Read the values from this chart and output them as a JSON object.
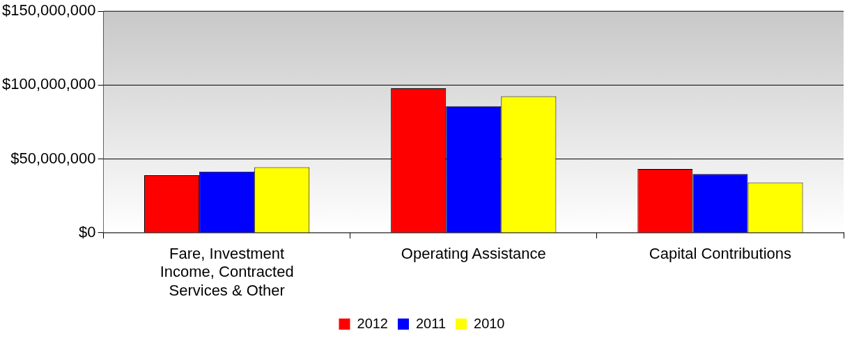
{
  "chart_data": {
    "type": "bar",
    "categories": [
      "Fare, Investment Income, Contracted Services & Other",
      "Operating Assistance",
      "Capital Contributions"
    ],
    "series": [
      {
        "name": "2012",
        "color": "#ff0000",
        "values": [
          39000000,
          97800000,
          43200000
        ]
      },
      {
        "name": "2011",
        "color": "#0000ff",
        "values": [
          41500000,
          85700000,
          39800000
        ]
      },
      {
        "name": "2010",
        "color": "#ffff00",
        "values": [
          44400000,
          92400000,
          34000000
        ]
      }
    ],
    "ylim": [
      0,
      150000000
    ],
    "yticks": [
      {
        "value": 0,
        "label": "$0"
      },
      {
        "value": 50000000,
        "label": "$50,000,000"
      },
      {
        "value": 100000000,
        "label": "$100,000,000"
      },
      {
        "value": 150000000,
        "label": "$150,000,000"
      }
    ],
    "grid": "y",
    "legend": "bottom"
  }
}
